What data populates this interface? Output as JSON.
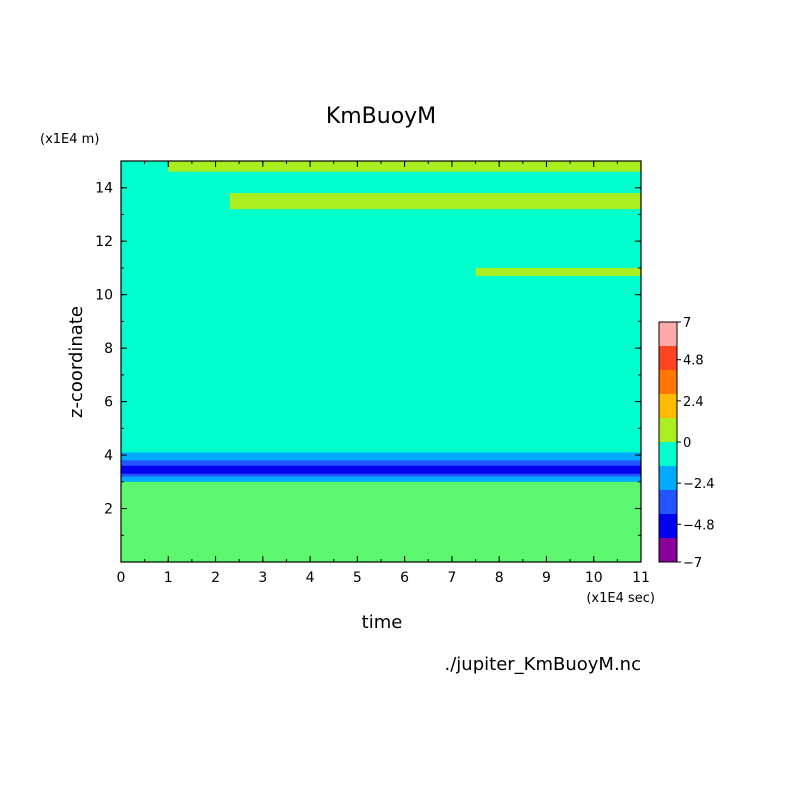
{
  "chart_data": {
    "type": "heatmap",
    "title": "KmBuoyM",
    "xlabel": "time",
    "ylabel": "z-coordinate",
    "x_unit": "(x1E4 sec)",
    "y_unit": "(x1E4 m)",
    "xlim": [
      0,
      11
    ],
    "ylim": [
      0,
      15
    ],
    "x_ticks": [
      "0",
      "1",
      "2",
      "3",
      "4",
      "5",
      "6",
      "7",
      "8",
      "9",
      "10",
      "11"
    ],
    "y_ticks": [
      "2",
      "4",
      "6",
      "8",
      "10",
      "12",
      "14"
    ],
    "source_file": "./jupiter_KmBuoyM.nc",
    "colorbar": {
      "tick_labels": [
        "7",
        "4.8",
        "2.4",
        "0",
        "-2.4",
        "-4.8",
        "-7"
      ],
      "levels": [
        {
          "lo": 5.6,
          "hi": 7.0,
          "color": "#ffaaaa"
        },
        {
          "lo": 4.2,
          "hi": 5.6,
          "color": "#ff4422"
        },
        {
          "lo": 2.8,
          "hi": 4.2,
          "color": "#ff7700"
        },
        {
          "lo": 1.4,
          "hi": 2.8,
          "color": "#ffbb00"
        },
        {
          "lo": 0.0,
          "hi": 1.4,
          "color": "#aaee22"
        },
        {
          "lo": -1.4,
          "hi": 0.0,
          "color": "#00ffcc"
        },
        {
          "lo": -2.8,
          "hi": -1.4,
          "color": "#00aaff"
        },
        {
          "lo": -4.2,
          "hi": -2.8,
          "color": "#2255ff"
        },
        {
          "lo": -5.6,
          "hi": -4.2,
          "color": "#0000ee"
        },
        {
          "lo": -7.0,
          "hi": -5.6,
          "color": "#880099"
        }
      ]
    },
    "background_level_color": "#00ffcc",
    "regions": [
      {
        "level": 0.7,
        "x": [
          2.3,
          11.0
        ],
        "y": [
          13.2,
          13.8
        ],
        "desc": "positive band near top"
      },
      {
        "level": 0.7,
        "x": [
          7.5,
          11.0
        ],
        "y": [
          10.7,
          11.0
        ],
        "desc": "positive band"
      },
      {
        "level": 0.7,
        "x": [
          1.0,
          11.0
        ],
        "y": [
          14.6,
          15.0
        ],
        "desc": "positive band at top edge"
      },
      {
        "level": 0.7,
        "x": [
          0.0,
          11.0
        ],
        "y": [
          0.0,
          3.0
        ],
        "desc": "patchy positive plumes"
      },
      {
        "level": -2.1,
        "x": [
          0.0,
          11.0
        ],
        "y": [
          3.0,
          4.1
        ],
        "desc": "negative layer"
      },
      {
        "level": -3.5,
        "x": [
          0.0,
          11.0
        ],
        "y": [
          3.2,
          3.8
        ],
        "desc": "negative core"
      },
      {
        "level": -4.9,
        "x": [
          0.0,
          11.0
        ],
        "y": [
          3.3,
          3.6
        ],
        "desc": "strongest negative core"
      }
    ]
  }
}
